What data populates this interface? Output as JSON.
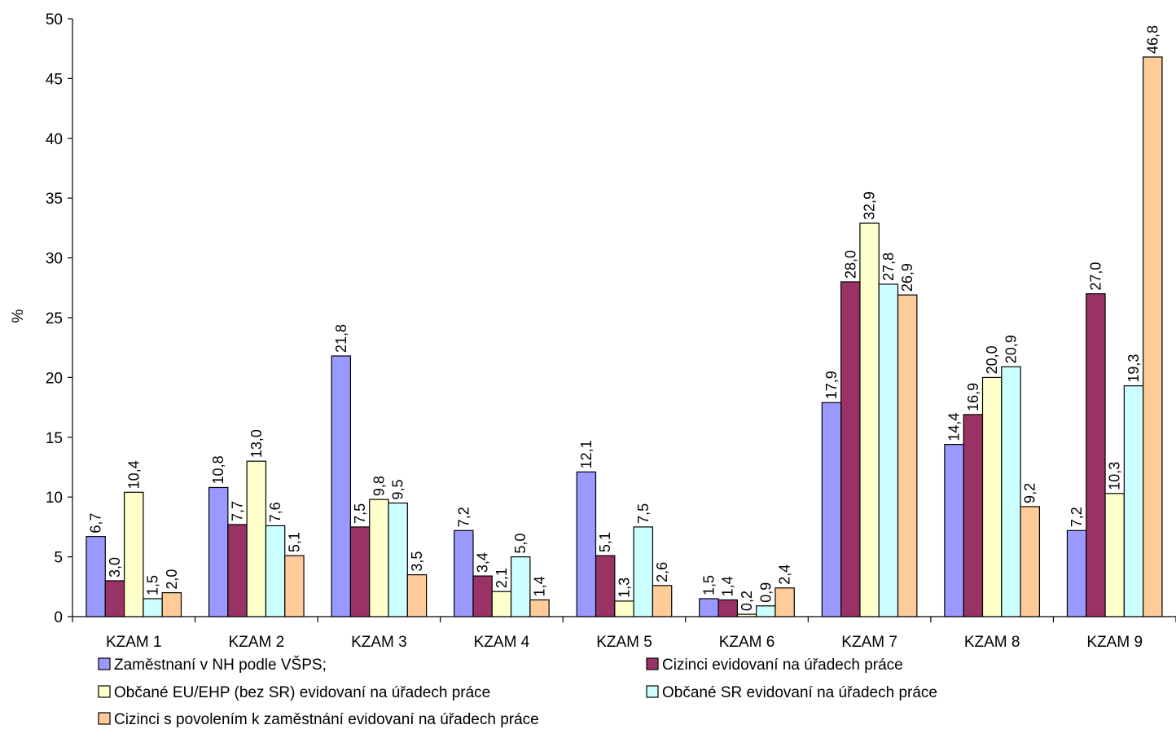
{
  "chart_data": {
    "type": "bar",
    "title": "",
    "xlabel": "",
    "ylabel": "%",
    "ylim": [
      0,
      50
    ],
    "yticks": [
      0,
      5,
      10,
      15,
      20,
      25,
      30,
      35,
      40,
      45,
      50
    ],
    "ytick_labels": [
      "0",
      "5",
      "10",
      "15",
      "20",
      "25",
      "30",
      "35",
      "40",
      "45",
      "50"
    ],
    "grid": false,
    "legend_position": "bottom",
    "categories": [
      "KZAM 1",
      "KZAM 2",
      "KZAM 3",
      "KZAM 4",
      "KZAM 5",
      "KZAM 6",
      "KZAM 7",
      "KZAM 8",
      "KZAM 9"
    ],
    "series": [
      {
        "name": "Zaměstnaní v NH podle VŠPS;",
        "color": "#9999FF",
        "values": [
          6.7,
          10.8,
          21.8,
          7.2,
          12.1,
          1.5,
          17.9,
          14.4,
          7.2
        ],
        "labels": [
          "6,7",
          "10,8",
          "21,8",
          "7,2",
          "12,1",
          "1,5",
          "17,9",
          "14,4",
          "7,2"
        ]
      },
      {
        "name": "Cizinci evidovaní na úřadech práce",
        "color": "#993366",
        "values": [
          3.0,
          7.7,
          7.5,
          3.4,
          5.1,
          1.4,
          28.0,
          16.9,
          27.0
        ],
        "labels": [
          "3,0",
          "7,7",
          "7,5",
          "3,4",
          "5,1",
          "1,4",
          "28,0",
          "16,9",
          "27,0"
        ]
      },
      {
        "name": "Občané EU/EHP (bez SR) evidovaní na úřadech práce",
        "color": "#FFFFCC",
        "values": [
          10.4,
          13.0,
          9.8,
          2.1,
          1.3,
          0.2,
          32.9,
          20.0,
          10.3
        ],
        "labels": [
          "10,4",
          "13,0",
          "9,8",
          "2,1",
          "1,3",
          "0,2",
          "32,9",
          "20,0",
          "10,3"
        ]
      },
      {
        "name": "Občané SR evidovaní na úřadech práce",
        "color": "#CCFFFF",
        "values": [
          1.5,
          7.6,
          9.5,
          5.0,
          7.5,
          0.9,
          27.8,
          20.9,
          19.3
        ],
        "labels": [
          "1,5",
          "7,6",
          "9,5",
          "5,0",
          "7,5",
          "0,9",
          "27,8",
          "20,9",
          "19,3"
        ]
      },
      {
        "name": "Cizinci s povolením k zaměstnání evidovaní na úřadech práce",
        "color": "#FFCC99",
        "values": [
          2.0,
          5.1,
          3.5,
          1.4,
          2.6,
          2.4,
          26.9,
          9.2,
          46.8
        ],
        "labels": [
          "2,0",
          "5,1",
          "3,5",
          "1,4",
          "2,6",
          "2,4",
          "26,9",
          "9,2",
          "46,8"
        ]
      }
    ]
  }
}
